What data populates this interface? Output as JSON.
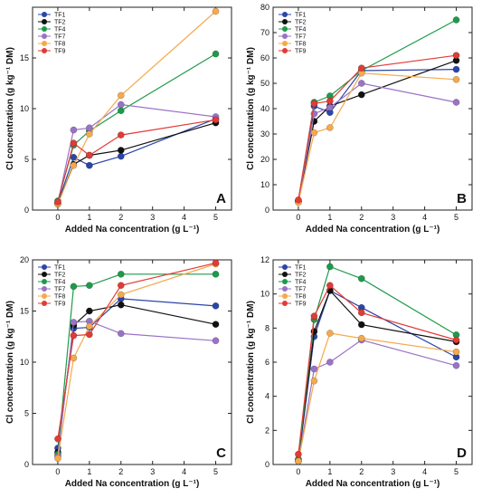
{
  "figure": {
    "series_colors": {
      "TF1": "#2b45a8",
      "TF2": "#111111",
      "TF4": "#1e9a4a",
      "TF7": "#9a72c7",
      "TF8": "#f5a94c",
      "TF9": "#e23b36"
    }
  },
  "chart_data": [
    {
      "type": "line",
      "panel_label": "A",
      "xlabel": "Added Na concentration (g L⁻¹)",
      "ylabel": "Cl concentration (g kg⁻¹ DM)",
      "xlim": [
        -0.8,
        5.5
      ],
      "ylim": [
        0,
        20
      ],
      "xticks": [
        0,
        1,
        2,
        3,
        4,
        5
      ],
      "yticks": [
        0,
        5,
        10,
        15,
        20
      ],
      "ytick_labels": [
        "0",
        "5",
        "10",
        "15",
        ""
      ],
      "x": [
        0,
        0.5,
        1,
        2,
        5
      ],
      "legend_position": "top-left",
      "series": [
        {
          "name": "TF1",
          "values": [
            0.7,
            5.2,
            4.4,
            5.3,
            9.0
          ]
        },
        {
          "name": "TF2",
          "values": [
            0.6,
            4.5,
            5.4,
            5.9,
            8.6
          ]
        },
        {
          "name": "TF4",
          "values": [
            0.9,
            6.4,
            7.8,
            9.8,
            15.4
          ]
        },
        {
          "name": "TF7",
          "values": [
            0.7,
            7.9,
            8.1,
            10.4,
            9.2
          ]
        },
        {
          "name": "TF8",
          "values": [
            0.6,
            4.4,
            7.5,
            11.3,
            19.6
          ]
        },
        {
          "name": "TF9",
          "values": [
            0.8,
            6.6,
            5.4,
            7.4,
            8.9
          ]
        }
      ]
    },
    {
      "type": "line",
      "panel_label": "B",
      "xlabel": "Added Na concentration (g L⁻¹)",
      "ylabel": "Cl concentration (g kg⁻¹ DM)",
      "xlim": [
        -0.8,
        5.5
      ],
      "ylim": [
        0,
        80
      ],
      "xticks": [
        0,
        1,
        2,
        3,
        4,
        5
      ],
      "yticks": [
        0,
        10,
        20,
        30,
        40,
        50,
        60,
        70,
        80
      ],
      "ytick_labels": [
        "0",
        "10",
        "20",
        "30",
        "40",
        "50",
        "60",
        "70",
        "80"
      ],
      "x": [
        0,
        0.5,
        1,
        2,
        5
      ],
      "legend_position": "top-left",
      "series": [
        {
          "name": "TF1",
          "values": [
            3.5,
            41,
            38.5,
            55,
            55.5
          ]
        },
        {
          "name": "TF2",
          "values": [
            3.5,
            35,
            41,
            45.5,
            59
          ]
        },
        {
          "name": "TF4",
          "values": [
            3.5,
            42.5,
            45,
            55,
            75
          ]
        },
        {
          "name": "TF7",
          "values": [
            3.5,
            38,
            40.5,
            50,
            42.5
          ]
        },
        {
          "name": "TF8",
          "values": [
            3,
            30.5,
            32.5,
            54,
            51.5
          ]
        },
        {
          "name": "TF9",
          "values": [
            4,
            42,
            43,
            56,
            61
          ]
        }
      ]
    },
    {
      "type": "line",
      "panel_label": "C",
      "xlabel": "Added Na concentration (g L⁻¹)",
      "ylabel": "Cl concentration (g kg⁻¹ DM)",
      "xlim": [
        -0.8,
        5.5
      ],
      "ylim": [
        0,
        20
      ],
      "xticks": [
        0,
        1,
        2,
        3,
        4,
        5
      ],
      "yticks": [
        0,
        5,
        10,
        15,
        20
      ],
      "ytick_labels": [
        "0",
        "5",
        "10",
        "15",
        "20"
      ],
      "x": [
        0,
        0.5,
        1,
        2,
        5
      ],
      "legend_position": "top-left",
      "series": [
        {
          "name": "TF1",
          "values": [
            1.6,
            13.3,
            13.4,
            16.2,
            15.5
          ]
        },
        {
          "name": "TF2",
          "values": [
            1.2,
            13.6,
            15.0,
            15.6,
            13.7
          ]
        },
        {
          "name": "TF4",
          "values": [
            1.0,
            17.4,
            17.5,
            18.6,
            18.6
          ]
        },
        {
          "name": "TF7",
          "values": [
            0.8,
            13.9,
            14.0,
            12.8,
            12.1
          ]
        },
        {
          "name": "TF8",
          "values": [
            0.6,
            10.4,
            13.5,
            16.6,
            19.6
          ]
        },
        {
          "name": "TF9",
          "values": [
            2.5,
            12.6,
            12.7,
            17.5,
            19.7
          ]
        }
      ]
    },
    {
      "type": "line",
      "panel_label": "D",
      "xlabel": "Added Na concentration (g L⁻¹)",
      "ylabel": "Cl concentration (g kg⁻¹ DM)",
      "xlim": [
        -0.8,
        5.5
      ],
      "ylim": [
        0,
        12
      ],
      "xticks": [
        0,
        1,
        2,
        3,
        4,
        5
      ],
      "yticks": [
        0,
        2,
        4,
        6,
        8,
        10,
        12
      ],
      "ytick_labels": [
        "0",
        "2",
        "4",
        "6",
        "8",
        "10",
        "12"
      ],
      "x": [
        0,
        0.5,
        1,
        2,
        5
      ],
      "legend_position": "top-left",
      "series": [
        {
          "name": "TF1",
          "values": [
            0.2,
            7.5,
            10.2,
            9.2,
            6.3
          ]
        },
        {
          "name": "TF2",
          "values": [
            0.3,
            7.8,
            10.2,
            8.2,
            7.2
          ]
        },
        {
          "name": "TF4",
          "values": [
            0.3,
            8.5,
            11.6,
            10.9,
            7.6
          ]
        },
        {
          "name": "TF7",
          "values": [
            0.2,
            5.6,
            6.0,
            7.3,
            5.8
          ]
        },
        {
          "name": "TF8",
          "values": [
            0.2,
            4.9,
            7.7,
            7.4,
            6.6
          ]
        },
        {
          "name": "TF9",
          "values": [
            0.6,
            8.7,
            10.5,
            8.9,
            7.3
          ]
        }
      ]
    }
  ]
}
